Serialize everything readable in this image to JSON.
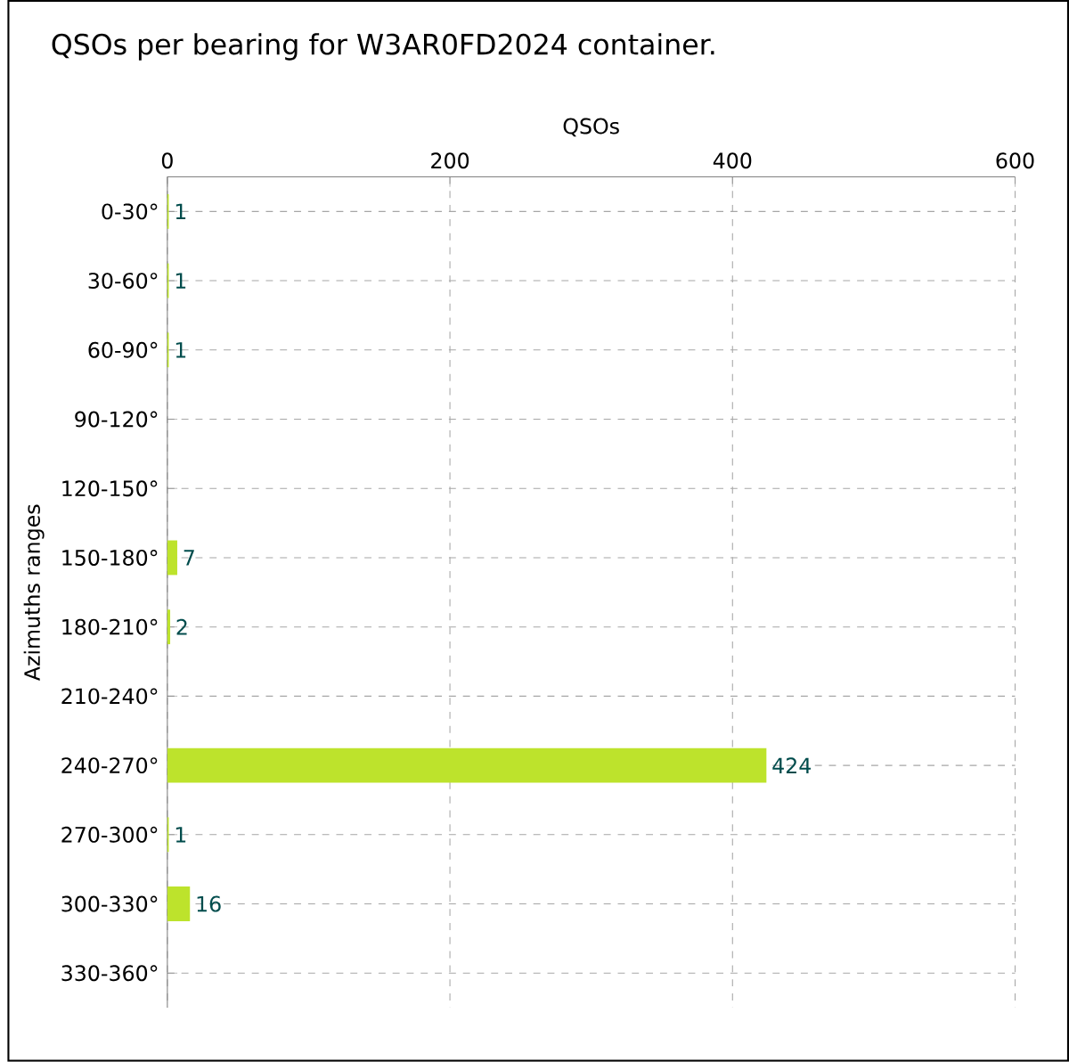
{
  "chart_data": {
    "type": "bar",
    "orientation": "horizontal",
    "title": "QSOs per bearing for W3AR0FD2024 container.",
    "xlabel": "QSOs",
    "ylabel": "Azimuths ranges",
    "categories": [
      "0-30°",
      "30-60°",
      "60-90°",
      "90-120°",
      "120-150°",
      "150-180°",
      "180-210°",
      "210-240°",
      "240-270°",
      "270-300°",
      "300-330°",
      "330-360°"
    ],
    "values": [
      1,
      1,
      1,
      0,
      0,
      7,
      2,
      0,
      424,
      1,
      16,
      0
    ],
    "value_labels": [
      "1",
      "1",
      "1",
      null,
      null,
      "7",
      "2",
      null,
      "424",
      "1",
      "16",
      null
    ],
    "color": "#bde32c",
    "xlim": [
      0,
      600
    ],
    "xticks": [
      0,
      200,
      400,
      600
    ],
    "grid": true
  }
}
